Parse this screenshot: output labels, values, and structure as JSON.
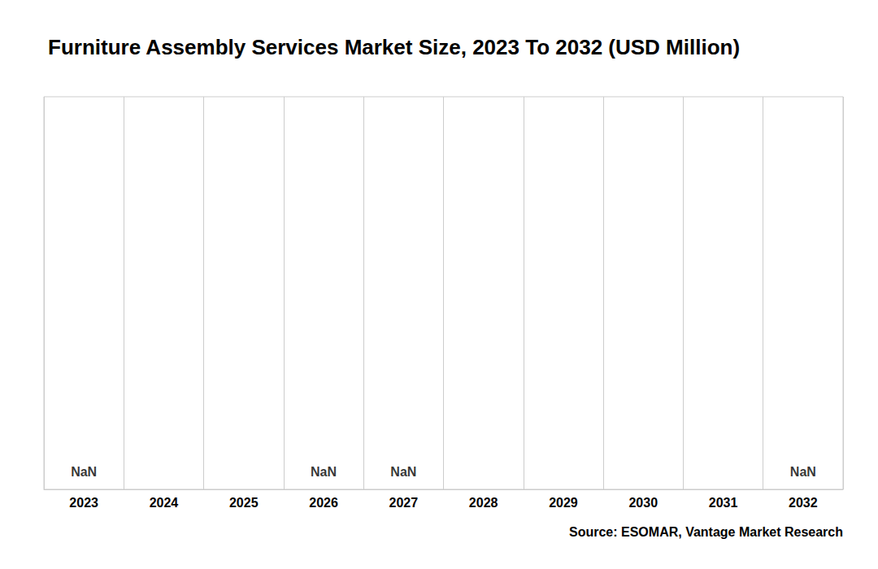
{
  "chart_data": {
    "type": "bar",
    "title": "Furniture Assembly Services Market Size, 2023 To 2032 (USD Million)",
    "categories": [
      "2023",
      "2024",
      "2025",
      "2026",
      "2027",
      "2028",
      "2029",
      "2030",
      "2031",
      "2032"
    ],
    "values": [
      null,
      null,
      null,
      null,
      null,
      null,
      null,
      null,
      null,
      null
    ],
    "annotations": [
      {
        "text": "NaN",
        "x": "2023"
      },
      {
        "text": "NaN",
        "x": "2026"
      },
      {
        "text": "NaN",
        "x": "2027"
      },
      {
        "text": "NaN",
        "x": "2032"
      }
    ],
    "source": "Source: ESOMAR, Vantage Market Research",
    "ylim": [
      0,
      1
    ],
    "grid": true,
    "tick_labels": "x"
  }
}
